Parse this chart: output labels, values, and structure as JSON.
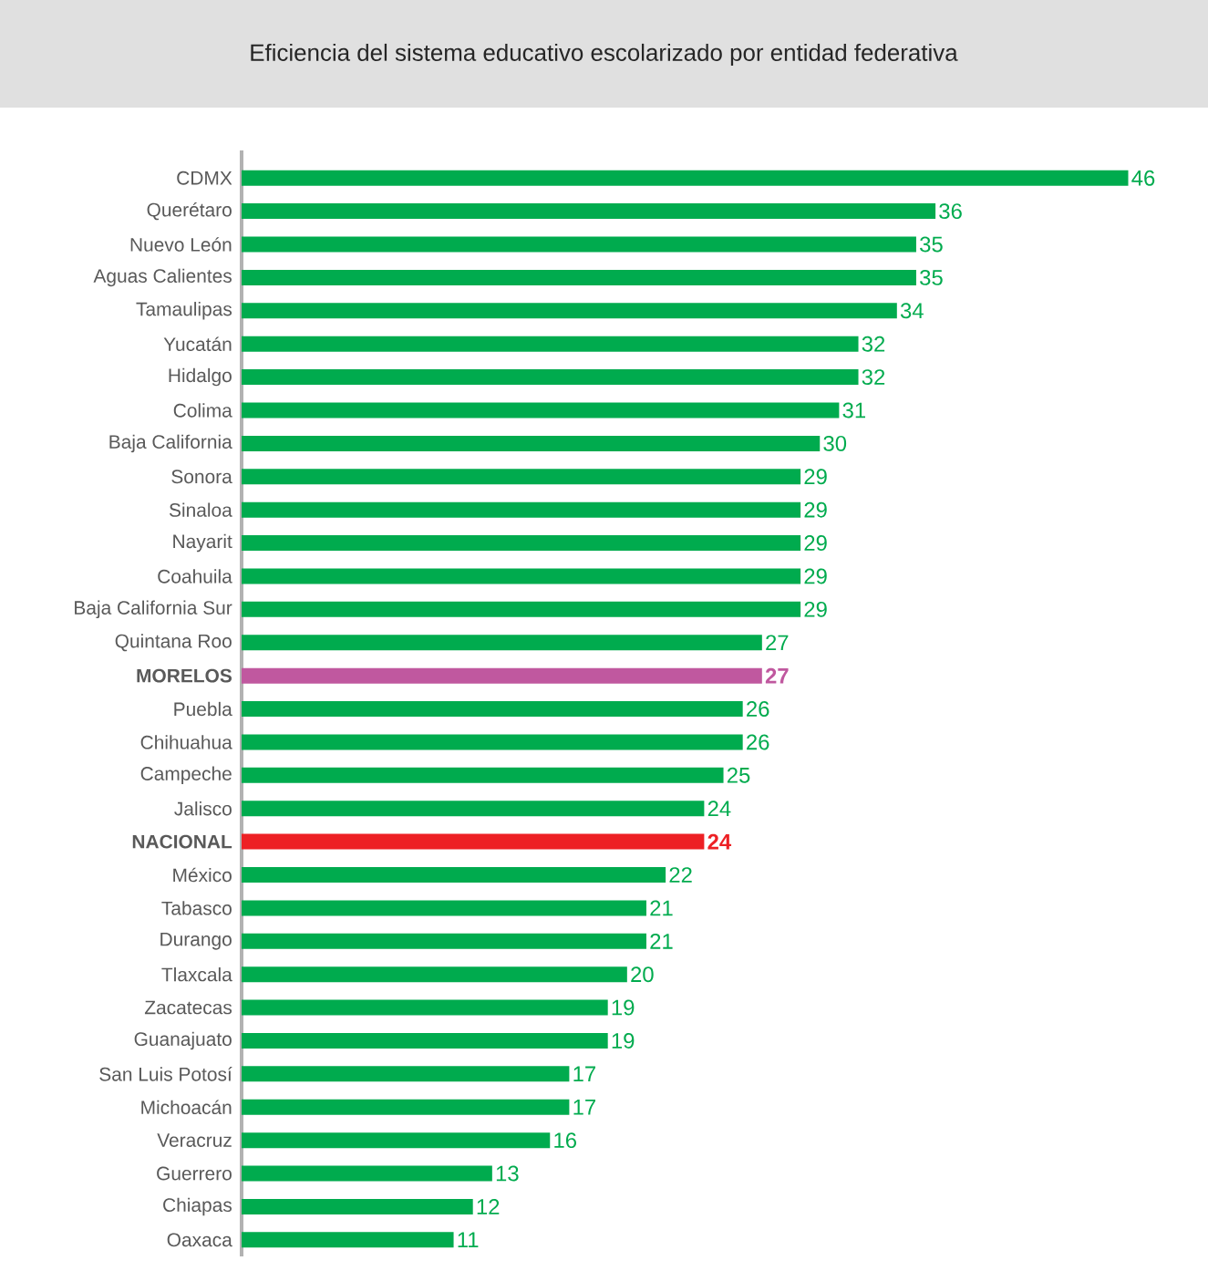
{
  "chart_data": {
    "type": "bar",
    "orientation": "horizontal",
    "title": "Eficiencia del sistema educativo escolarizado por entidad federativa",
    "categories": [
      "CDMX",
      "Querétaro",
      "Nuevo León",
      "Aguas Calientes",
      "Tamaulipas",
      "Yucatán",
      "Hidalgo",
      "Colima",
      "Baja California",
      "Sonora",
      "Sinaloa",
      "Nayarit",
      "Coahuila",
      "Baja California Sur",
      "Quintana Roo",
      "MORELOS",
      "Puebla",
      "Chihuahua",
      "Campeche",
      "Jalisco",
      "NACIONAL",
      "México",
      "Tabasco",
      "Durango",
      "Tlaxcala",
      "Zacatecas",
      "Guanajuato",
      "San Luis Potosí",
      "Michoacán",
      "Veracruz",
      "Guerrero",
      "Chiapas",
      "Oaxaca"
    ],
    "values": [
      46,
      36,
      35,
      35,
      34,
      32,
      32,
      31,
      30,
      29,
      29,
      29,
      29,
      29,
      27,
      27,
      26,
      26,
      25,
      24,
      24,
      22,
      21,
      21,
      20,
      19,
      19,
      17,
      17,
      16,
      13,
      12,
      11
    ],
    "colors": [
      "#00ab4e",
      "#00ab4e",
      "#00ab4e",
      "#00ab4e",
      "#00ab4e",
      "#00ab4e",
      "#00ab4e",
      "#00ab4e",
      "#00ab4e",
      "#00ab4e",
      "#00ab4e",
      "#00ab4e",
      "#00ab4e",
      "#00ab4e",
      "#00ab4e",
      "#c0589f",
      "#00ab4e",
      "#00ab4e",
      "#00ab4e",
      "#00ab4e",
      "#ed2024",
      "#00ab4e",
      "#00ab4e",
      "#00ab4e",
      "#00ab4e",
      "#00ab4e",
      "#00ab4e",
      "#00ab4e",
      "#00ab4e",
      "#00ab4e",
      "#00ab4e",
      "#00ab4e",
      "#00ab4e"
    ],
    "data_labels": true
  }
}
